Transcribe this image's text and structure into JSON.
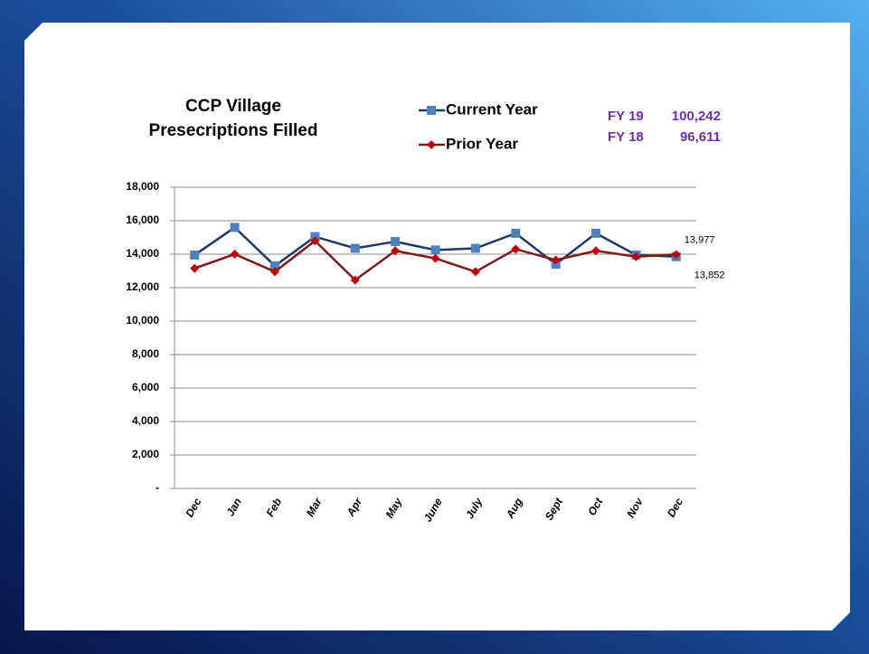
{
  "chart_data": {
    "type": "line",
    "title": [
      "CCP  Village",
      "Presecriptions Filled"
    ],
    "categories": [
      "Dec",
      "Jan",
      "Feb",
      "Mar",
      "Apr",
      "May",
      "June",
      "July",
      "Aug",
      "Sept",
      "Oct",
      "Nov",
      "Dec"
    ],
    "series": [
      {
        "name": "Current Year",
        "color": "#4f81bd",
        "line_color": "#1f3864",
        "values": [
          13950,
          15600,
          13300,
          15050,
          14350,
          14750,
          14250,
          14350,
          15250,
          13400,
          15250,
          13950,
          13852
        ],
        "value_labels": [
          null,
          null,
          null,
          null,
          null,
          null,
          null,
          null,
          null,
          null,
          null,
          null,
          "13,852"
        ]
      },
      {
        "name": "Prior Year",
        "color": "#c00000",
        "line_color": "#7b1c1c",
        "values": [
          13150,
          14000,
          12950,
          14800,
          12450,
          14200,
          13750,
          12950,
          14300,
          13650,
          14200,
          13850,
          13977
        ],
        "value_labels": [
          null,
          null,
          null,
          null,
          null,
          null,
          null,
          null,
          null,
          null,
          null,
          null,
          "13,977"
        ]
      }
    ],
    "ylim": [
      0,
      18000
    ],
    "yticks": [
      {
        "value": 0,
        "label": "-"
      },
      {
        "value": 2000,
        "label": "2,000"
      },
      {
        "value": 4000,
        "label": "4,000"
      },
      {
        "value": 6000,
        "label": "6,000"
      },
      {
        "value": 8000,
        "label": "8,000"
      },
      {
        "value": 10000,
        "label": "10,000"
      },
      {
        "value": 12000,
        "label": "12,000"
      },
      {
        "value": 14000,
        "label": "14,000"
      },
      {
        "value": 16000,
        "label": "16,000"
      },
      {
        "value": 18000,
        "label": "18,000"
      }
    ],
    "grid": true,
    "annotations": [
      {
        "label": "FY 19",
        "value": 100242,
        "value_label": "100,242"
      },
      {
        "label": "FY 18",
        "value": 96611,
        "value_label": "96,611"
      }
    ]
  }
}
